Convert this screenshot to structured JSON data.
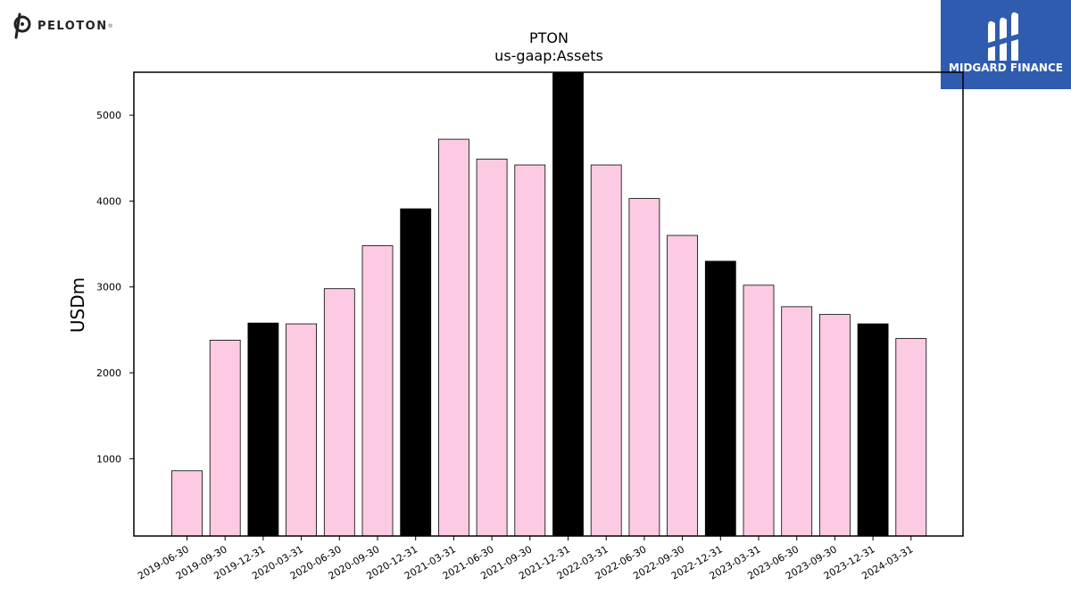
{
  "logos": {
    "left_brand": "PELOTON",
    "right_brand": "MIDGARD FINANCE"
  },
  "chart_data": {
    "type": "bar",
    "title": "PTON",
    "subtitle": "us-gaap:Assets",
    "xlabel": "",
    "ylabel": "USDm",
    "ylim": [
      100,
      5500
    ],
    "yticks": [
      1000,
      2000,
      3000,
      4000,
      5000
    ],
    "grid": false,
    "categories": [
      "2019-06-30",
      "2019-09-30",
      "2019-12-31",
      "2020-03-31",
      "2020-06-30",
      "2020-09-30",
      "2020-12-31",
      "2021-03-31",
      "2021-06-30",
      "2021-09-30",
      "2021-12-31",
      "2022-03-31",
      "2022-06-30",
      "2022-09-30",
      "2022-12-31",
      "2023-03-31",
      "2023-06-30",
      "2023-09-30",
      "2023-12-31",
      "2024-03-31"
    ],
    "values": [
      860,
      2380,
      2580,
      2570,
      2980,
      3480,
      3910,
      4720,
      4490,
      4420,
      5500,
      4420,
      4030,
      3600,
      3300,
      3020,
      2770,
      2680,
      2570,
      2400
    ],
    "colors": {
      "default": "#fccbe3",
      "highlight": "#000000",
      "edge": "#000000"
    },
    "highlighted": [
      "2019-12-31",
      "2020-12-31",
      "2021-12-31",
      "2022-12-31",
      "2023-12-31"
    ]
  }
}
